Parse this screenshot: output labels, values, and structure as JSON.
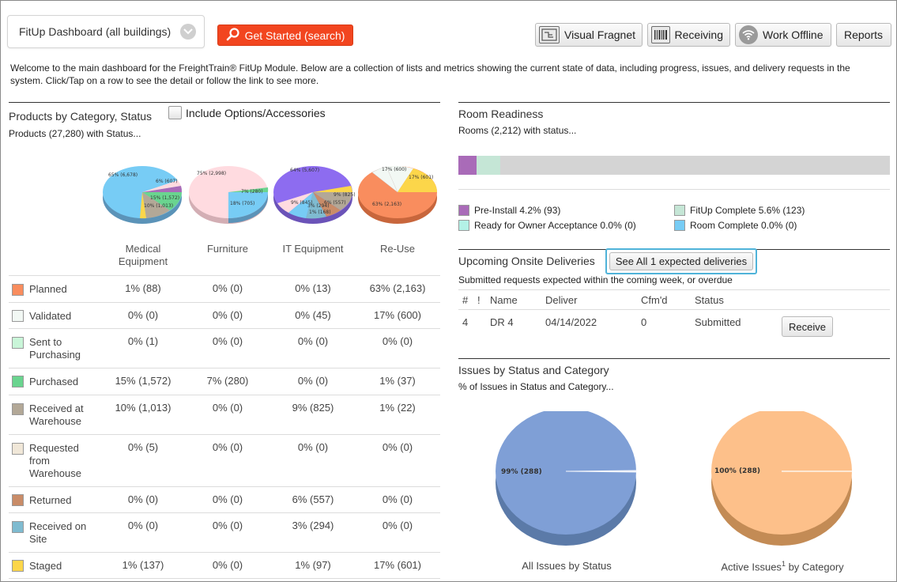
{
  "header": {
    "dashboard_select": "FitUp Dashboard (all buildings)",
    "get_started": "Get Started (search)",
    "buttons": {
      "visual_fragnet": "Visual Fragnet",
      "receiving": "Receiving",
      "work_offline": "Work Offline",
      "reports": "Reports"
    }
  },
  "intro": "Welcome to the main dashboard for the FreightTrain® FitUp Module. Below are a collection of lists and metrics showing the current state of data, including progress, issues, and delivery requests in the system. Click/Tap on a row to see the detail or follow the link to see more.",
  "products": {
    "title": "Products by Category, Status",
    "include_options": "Include Options/Accessories",
    "subtitle": "Products (27,280) with Status...",
    "columns": [
      "Medical Equipment",
      "Furniture",
      "IT Equipment",
      "Re-Use"
    ],
    "rows": [
      {
        "label": "Planned",
        "color": "#f98d5e",
        "values": [
          "1% (88)",
          "0% (0)",
          "0% (13)",
          "63% (2,163)"
        ]
      },
      {
        "label": "Validated",
        "color": "#f2f8f4",
        "values": [
          "0% (0)",
          "0% (0)",
          "0% (45)",
          "17% (600)"
        ]
      },
      {
        "label": "Sent to Purchasing",
        "color": "#c9f5d8",
        "values": [
          "0% (1)",
          "0% (0)",
          "0% (0)",
          "0% (0)"
        ]
      },
      {
        "label": "Purchased",
        "color": "#6ad48f",
        "values": [
          "15% (1,572)",
          "7% (280)",
          "0% (0)",
          "1% (37)"
        ]
      },
      {
        "label": "Received at Warehouse",
        "color": "#b3a897",
        "values": [
          "10% (1,013)",
          "0% (0)",
          "9% (825)",
          "1% (22)"
        ]
      },
      {
        "label": "Requested from Warehouse",
        "color": "#f0e7d8",
        "values": [
          "0% (5)",
          "0% (0)",
          "0% (0)",
          "0% (0)"
        ]
      },
      {
        "label": "Returned",
        "color": "#c98c68",
        "values": [
          "0% (0)",
          "0% (0)",
          "6% (557)",
          "0% (0)"
        ]
      },
      {
        "label": "Received on Site",
        "color": "#7fbbd0",
        "values": [
          "0% (0)",
          "0% (0)",
          "3% (294)",
          "0% (0)"
        ]
      },
      {
        "label": "Staged",
        "color": "#fcd64a",
        "values": [
          "1% (137)",
          "0% (0)",
          "1% (97)",
          "17% (601)"
        ]
      }
    ],
    "pies": [
      {
        "name": "Medical Equipment",
        "labels": [
          "65% (6,678)",
          "6% (607)",
          "15% (1,572)",
          "10% (1,013)"
        ]
      },
      {
        "name": "Furniture",
        "labels": [
          "75% (2,998)",
          "7% (280)",
          "18% (705)"
        ]
      },
      {
        "name": "IT Equipment",
        "labels": [
          "64% (5,607)",
          "9% (825)",
          "6% (557)",
          "3% (294)",
          "9% (845)",
          "1% (168)"
        ]
      },
      {
        "name": "Re-Use",
        "labels": [
          "17% (600)",
          "17% (601)",
          "63% (2,163)"
        ]
      }
    ]
  },
  "room_readiness": {
    "title": "Room Readiness",
    "subtitle": "Rooms (2,212) with status...",
    "bar": [
      {
        "status": "Pre-Install",
        "percent": 4.2,
        "color": "#a96bb8"
      },
      {
        "status": "FitUp Complete",
        "percent": 5.6,
        "color": "#c5e6d6"
      }
    ],
    "legend": [
      {
        "label": "Pre-Install 4.2% (93)",
        "color": "#a96bb8"
      },
      {
        "label": "FitUp Complete 5.6% (123)",
        "color": "#c5e6d6"
      },
      {
        "label": "Ready for Owner Acceptance 0.0% (0)",
        "color": "#b3f1e6"
      },
      {
        "label": "Room Complete 0.0% (0)",
        "color": "#77ccf5"
      }
    ]
  },
  "deliveries": {
    "title": "Upcoming Onsite Deliveries",
    "see_all": "See All 1 expected deliveries",
    "subtitle": "Submitted requests expected within the coming week, or overdue",
    "headers": [
      "#",
      "!",
      "Name",
      "Deliver",
      "Cfm'd",
      "Status"
    ],
    "rows": [
      {
        "num": "4",
        "flag": "",
        "name": "DR 4",
        "deliver": "04/14/2022",
        "cfmd": "0",
        "status": "Submitted",
        "action": "Receive"
      }
    ]
  },
  "issues": {
    "title": "Issues by Status and Category",
    "subtitle": "% of Issues in Status and Category...",
    "pies": [
      {
        "label": "99% (288)",
        "caption": "All Issues by Status",
        "color": "#7f9fd6"
      },
      {
        "label": "100% (288)",
        "caption_pre": "Active Issues",
        "caption_sup": "1",
        "caption_post": " by Category",
        "color": "#fdc08a"
      }
    ]
  }
}
